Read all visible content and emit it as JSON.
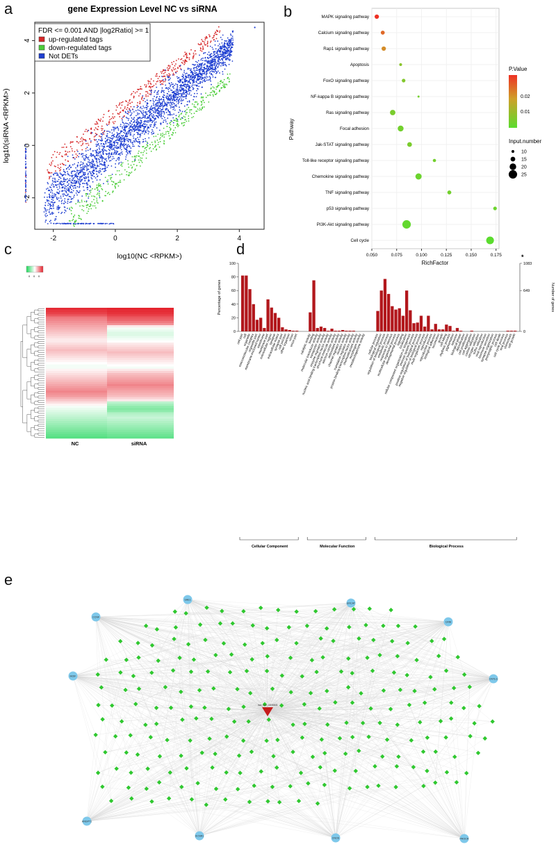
{
  "panel_labels": {
    "a": "a",
    "b": "b",
    "c": "c",
    "d": "d",
    "e": "e"
  },
  "chart_data": [
    {
      "id": "a",
      "type": "scatter",
      "title": "gene Expression Level NC vs siRNA",
      "xlabel": "log10(NC <RPKM>)",
      "ylabel": "log10(siRNA <RPKM>)",
      "xlim": [
        -2.6,
        4.8
      ],
      "ylim": [
        -3.2,
        4.7
      ],
      "xticks": [
        -2,
        0,
        2,
        4
      ],
      "yticks": [
        -2,
        0,
        2,
        4
      ],
      "legend_title": "FDR <= 0.001 AND |log2Ratio| >= 1",
      "legend_position": "top-left",
      "series": [
        {
          "name": "up-regulated tags",
          "color": "#d62728"
        },
        {
          "name": "down-regulated tags",
          "color": "#4ccd3a"
        },
        {
          "name": "Not DETs",
          "color": "#1f3fd1"
        }
      ]
    },
    {
      "id": "b",
      "type": "scatter",
      "xlabel": "RichFactor",
      "ylabel": "Pathway",
      "xlim": [
        0.05,
        0.178
      ],
      "xticks": [
        0.05,
        0.075,
        0.1,
        0.125,
        0.15,
        0.175
      ],
      "xtick_labels": [
        "0.050",
        "0.075",
        "0.100",
        "0.125",
        "0.150",
        "0.175"
      ],
      "categories": [
        "MAPK signaling pathway",
        "Calcium signaling pathway",
        "Rap1 signaling pathway",
        "Apoptosis",
        "FoxO signaling pathway",
        "NF-kappa B signaling pathway",
        "Ras signaling pathway",
        "Focal adhesion",
        "Jak-STAT signaling pathway",
        "Toll-like receptor signaling pathway",
        "Chemokine signaling pathway",
        "TNF signaling pathway",
        "p53 signaling pathway",
        "PI3K-Akt signaling pathway",
        "Cell cycle"
      ],
      "x": [
        0.055,
        0.061,
        0.062,
        0.079,
        0.082,
        0.097,
        0.071,
        0.079,
        0.088,
        0.113,
        0.097,
        0.128,
        0.174,
        0.085,
        0.169
      ],
      "pvalue": [
        0.028,
        0.022,
        0.018,
        0.007,
        0.006,
        0.004,
        0.005,
        0.004,
        0.005,
        0.004,
        0.003,
        0.004,
        0.003,
        0.002,
        0.001
      ],
      "input_number": [
        14,
        13,
        14,
        10,
        12,
        8,
        17,
        18,
        15,
        11,
        19,
        13,
        12,
        25,
        23
      ],
      "color_legend": {
        "title": "P.Value",
        "ticks": [
          "0.02",
          "0.01"
        ],
        "high_color": "#ee3124",
        "mid_color": "#cfa02a",
        "low_color": "#5bdc2e"
      },
      "size_legend": {
        "title": "Input.number",
        "values": [
          10,
          15,
          20,
          25
        ]
      }
    },
    {
      "id": "c",
      "type": "heatmap",
      "columns": [
        "NC",
        "siRNA"
      ],
      "scale_labels": [
        "0",
        "0",
        "0"
      ],
      "low_color": "#1fd65a",
      "mid_color": "#ffffff",
      "high_color": "#e4202a",
      "rows_nc": [
        0.95,
        0.9,
        0.85,
        0.75,
        0.6,
        0.55,
        0.5,
        0.45,
        0.4,
        0.35,
        0.3,
        0.25,
        0.2,
        0.15,
        0.1,
        0.1,
        0.15,
        0.2,
        0.25,
        0.3,
        0.25,
        0.2,
        0.15,
        0.1,
        0.05,
        0.0,
        -0.05,
        -0.05,
        0.05,
        0.1,
        0.15,
        0.2,
        0.25,
        0.3,
        0.35,
        0.4,
        0.45,
        0.5,
        0.55,
        0.5,
        0.45,
        0.35,
        0.25,
        0.15,
        0.05,
        -0.05,
        -0.1,
        -0.15,
        -0.2,
        -0.25,
        -0.3,
        -0.35,
        -0.4,
        -0.45,
        -0.5,
        -0.55,
        -0.6,
        -0.65,
        -0.7,
        -0.75
      ],
      "rows_sirna": [
        0.98,
        0.95,
        0.92,
        0.85,
        0.75,
        0.7,
        0.6,
        0.5,
        0.1,
        -0.05,
        -0.1,
        -0.15,
        -0.15,
        -0.1,
        -0.05,
        0.0,
        0.1,
        0.15,
        0.2,
        0.25,
        0.3,
        0.25,
        0.2,
        0.15,
        0.1,
        0.05,
        0.0,
        -0.05,
        0.1,
        0.2,
        0.3,
        0.35,
        0.4,
        0.45,
        0.5,
        0.55,
        0.5,
        0.45,
        0.4,
        0.35,
        0.3,
        0.2,
        0.1,
        -0.3,
        -0.4,
        -0.5,
        -0.55,
        -0.5,
        -0.35,
        -0.3,
        -0.25,
        -0.3,
        -0.35,
        -0.4,
        -0.45,
        -0.5,
        -0.55,
        -0.6,
        -0.65,
        -0.7
      ]
    },
    {
      "id": "d",
      "type": "bar",
      "ylabel": "Percentage of genes",
      "y2label": "Number of genes",
      "yticks": [
        0,
        20,
        40,
        60,
        80,
        100
      ],
      "y2ticks": [
        "0",
        "649",
        "1083"
      ],
      "star": "*",
      "bar_color": "#b2171c",
      "groups": [
        {
          "name": "Cellular Component",
          "categories": [
            "cell part",
            "cell",
            "organelle",
            "macromolecular complex",
            "organelle part",
            "membrane-enclosed lumen",
            "membrane",
            "membrane part",
            "extracellular region",
            "synapse",
            "extracellular matrix",
            "synapse part",
            "cell junction",
            "other organism",
            "virion",
            "virion part"
          ],
          "values": [
            82,
            82,
            62,
            40,
            17,
            20,
            5,
            47,
            35,
            27,
            20,
            6,
            3,
            2,
            1,
            1
          ]
        },
        {
          "name": "Molecular Function",
          "categories": [
            "catalytic activity",
            "binding",
            "molecular transducer activity",
            "transporter activity",
            "enzyme regulator activity",
            "nucleic acid binding transcription factor activity",
            "structural molecule activity",
            "electron carrier activity",
            "antioxidant activity",
            "channel regulator activity",
            "receptor activity",
            "translation regulator activity",
            "protein binding transcription factor activity",
            "chemoattractant activity",
            "morphogen activity",
            "metallochaperone activity"
          ],
          "values": [
            28,
            75,
            5,
            7,
            5,
            1,
            4,
            1,
            1,
            2,
            1,
            1,
            1,
            0,
            0,
            0
          ]
        },
        {
          "name": "Biological Process",
          "categories": [
            "cellular process",
            "biological regulation",
            "regulation of biological process",
            "metabolic process",
            "response to stimulus",
            "multicellular organismal process",
            "developmental process",
            "signaling",
            "localization",
            "cellular component organization or biogenesis",
            "immune system process",
            "positive regulation of biological process",
            "negative regulation of biological process",
            "multi-organism process",
            "reproduction",
            "reproductive process",
            "biological adhesion",
            "locomotion",
            "growth",
            "cell killing",
            "rhythmic process",
            "pigmentation",
            "behavior",
            "biological phase",
            "detoxification",
            "cell proliferation",
            "cell aggregation",
            "carbon utilization",
            "nitrogen utilization",
            "sulfur utilization",
            "viral reproduction",
            "hormone secretion",
            "synapse organization",
            "presynaptic process",
            "cell death",
            "cell cycle process",
            "viral process",
            "chemotaxis",
            "cell growth"
          ],
          "values": [
            30,
            60,
            77,
            55,
            37,
            32,
            34,
            23,
            60,
            31,
            12,
            13,
            23,
            7,
            23,
            3,
            11,
            3,
            3,
            10,
            8,
            1,
            5,
            1,
            0,
            0,
            1,
            0,
            0,
            0,
            0,
            0,
            0,
            0,
            0,
            0,
            1,
            1,
            1
          ]
        }
      ]
    },
    {
      "id": "e",
      "type": "network",
      "center_node": "hsa_circ_0005508",
      "hub_nodes": [
        "SAE1",
        "ERCAT",
        "CCNF",
        "CANI",
        "MOIF",
        "CNTLG",
        "ANGPT1",
        "DCNR1",
        "CNOS",
        "PROCR"
      ],
      "mirna_count": 250,
      "colors": {
        "hub": "#7ec8ea",
        "mirna": "#2fc82f",
        "center": "#c61b1b",
        "edge": "#d6d6d6"
      }
    }
  ]
}
